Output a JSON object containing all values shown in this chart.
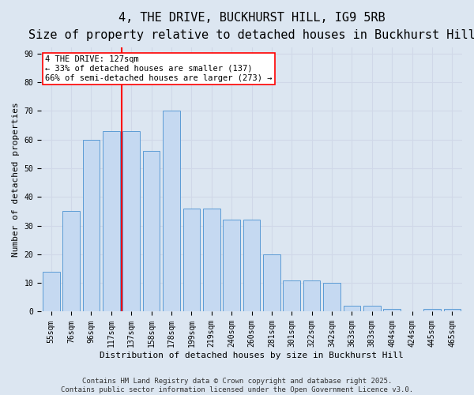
{
  "title_line1": "4, THE DRIVE, BUCKHURST HILL, IG9 5RB",
  "title_line2": "Size of property relative to detached houses in Buckhurst Hill",
  "xlabel": "Distribution of detached houses by size in Buckhurst Hill",
  "ylabel": "Number of detached properties",
  "categories": [
    "55sqm",
    "76sqm",
    "96sqm",
    "117sqm",
    "137sqm",
    "158sqm",
    "178sqm",
    "199sqm",
    "219sqm",
    "240sqm",
    "260sqm",
    "281sqm",
    "301sqm",
    "322sqm",
    "342sqm",
    "363sqm",
    "383sqm",
    "404sqm",
    "424sqm",
    "445sqm",
    "465sqm"
  ],
  "values": [
    14,
    35,
    60,
    63,
    63,
    56,
    70,
    36,
    36,
    32,
    32,
    20,
    11,
    11,
    10,
    2,
    2,
    1,
    0,
    1,
    1
  ],
  "bar_color": "#c5d9f1",
  "bar_edge_color": "#5b9bd5",
  "grid_color": "#d0d8e8",
  "background_color": "#dce6f1",
  "annotation_line1": "4 THE DRIVE: 127sqm",
  "annotation_line2": "← 33% of detached houses are smaller (137)",
  "annotation_line3": "66% of semi-detached houses are larger (273) →",
  "annotation_box_color": "white",
  "annotation_box_edge_color": "red",
  "vline_x": 3.5,
  "vline_color": "red",
  "ylim_max": 92,
  "yticks": [
    0,
    10,
    20,
    30,
    40,
    50,
    60,
    70,
    80,
    90
  ],
  "footer_text": "Contains HM Land Registry data © Crown copyright and database right 2025.\nContains public sector information licensed under the Open Government Licence v3.0.",
  "title_fontsize": 11,
  "subtitle_fontsize": 9,
  "axis_label_fontsize": 8,
  "tick_fontsize": 7,
  "annotation_fontsize": 7.5,
  "footer_fontsize": 6.5
}
